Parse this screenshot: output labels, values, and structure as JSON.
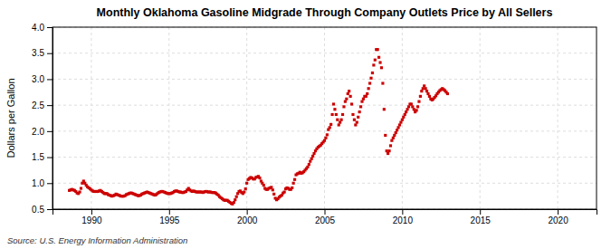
{
  "chart_data": {
    "type": "scatter",
    "title": "Monthly Oklahoma Gasoline Midgrade Through Company Outlets Price by All Sellers",
    "ylabel": "Dollars per Gallon",
    "annotations": [
      "Source: U.S. Energy Information Administration"
    ],
    "color": "#CC0000",
    "marker": "square",
    "grid": true,
    "xlim": [
      1987.5,
      2022.5
    ],
    "ylim": [
      0.5,
      4.0
    ],
    "xticks": [
      1990,
      1995,
      2000,
      2005,
      2010,
      2015,
      2020
    ],
    "yticks": [
      0.5,
      {
        "value": 1.0,
        "label": "1.0"
      },
      1.5,
      {
        "value": 2.0,
        "label": "2.0"
      },
      2.5,
      {
        "value": 3.0,
        "label": "3.0"
      },
      3.5,
      {
        "value": 4.0,
        "label": "4.0"
      }
    ],
    "x": [
      1988.583,
      1988.667,
      1988.75,
      1988.833,
      1988.917,
      1989.0,
      1989.083,
      1989.167,
      1989.25,
      1989.333,
      1989.417,
      1989.5,
      1989.583,
      1989.667,
      1989.75,
      1989.833,
      1989.917,
      1990.0,
      1990.083,
      1990.167,
      1990.25,
      1990.333,
      1990.417,
      1990.5,
      1990.583,
      1990.667,
      1990.75,
      1990.833,
      1990.917,
      1991.0,
      1991.083,
      1991.167,
      1991.25,
      1991.333,
      1991.417,
      1991.5,
      1991.583,
      1991.667,
      1991.75,
      1991.833,
      1991.917,
      1992.0,
      1992.083,
      1992.167,
      1992.25,
      1992.333,
      1992.417,
      1992.5,
      1992.583,
      1992.667,
      1992.75,
      1992.833,
      1992.917,
      1993.0,
      1993.083,
      1993.167,
      1993.25,
      1993.333,
      1993.417,
      1993.5,
      1993.583,
      1993.667,
      1993.75,
      1993.833,
      1993.917,
      1994.0,
      1994.083,
      1994.167,
      1994.25,
      1994.333,
      1994.417,
      1994.5,
      1994.583,
      1994.667,
      1994.75,
      1994.833,
      1994.917,
      1995.0,
      1995.083,
      1995.167,
      1995.25,
      1995.333,
      1995.417,
      1995.5,
      1995.583,
      1995.667,
      1995.75,
      1995.833,
      1995.917,
      1996.0,
      1996.083,
      1996.167,
      1996.25,
      1996.333,
      1996.417,
      1996.5,
      1996.583,
      1996.667,
      1996.75,
      1996.833,
      1996.917,
      1997.0,
      1997.083,
      1997.167,
      1997.25,
      1997.333,
      1997.417,
      1997.5,
      1997.583,
      1997.667,
      1997.75,
      1997.833,
      1997.917,
      1998.0,
      1998.083,
      1998.167,
      1998.25,
      1998.333,
      1998.417,
      1998.5,
      1998.583,
      1998.667,
      1998.75,
      1998.833,
      1998.917,
      1999.0,
      1999.083,
      1999.167,
      1999.25,
      1999.333,
      1999.417,
      1999.5,
      1999.583,
      1999.667,
      1999.75,
      1999.833,
      1999.917,
      2000.0,
      2000.083,
      2000.167,
      2000.25,
      2000.333,
      2000.417,
      2000.5,
      2000.583,
      2000.667,
      2000.75,
      2000.833,
      2000.917,
      2001.0,
      2001.083,
      2001.167,
      2001.25,
      2001.333,
      2001.417,
      2001.5,
      2001.583,
      2001.667,
      2001.75,
      2001.833,
      2001.917,
      2002.0,
      2002.083,
      2002.167,
      2002.25,
      2002.333,
      2002.417,
      2002.5,
      2002.583,
      2002.667,
      2002.75,
      2002.833,
      2002.917,
      2003.0,
      2003.083,
      2003.167,
      2003.25,
      2003.333,
      2003.417,
      2003.5,
      2003.583,
      2003.667,
      2003.75,
      2003.833,
      2003.917,
      2004.0,
      2004.083,
      2004.167,
      2004.25,
      2004.333,
      2004.417,
      2004.5,
      2004.583,
      2004.667,
      2004.75,
      2004.833,
      2004.917,
      2005.0,
      2005.083,
      2005.167,
      2005.25,
      2005.333,
      2005.417,
      2005.5,
      2005.583,
      2005.667,
      2005.75,
      2005.833,
      2005.917,
      2006.0,
      2006.083,
      2006.167,
      2006.25,
      2006.333,
      2006.417,
      2006.5,
      2006.583,
      2006.667,
      2006.75,
      2006.833,
      2006.917,
      2007.0,
      2007.083,
      2007.167,
      2007.25,
      2007.333,
      2007.417,
      2007.5,
      2007.583,
      2007.667,
      2007.75,
      2007.833,
      2007.917,
      2008.0,
      2008.083,
      2008.167,
      2008.25,
      2008.333,
      2008.417,
      2008.5,
      2008.583,
      2008.667,
      2008.75,
      2008.833,
      2008.917,
      2009.0,
      2009.083,
      2009.167,
      2009.25,
      2009.333,
      2009.417,
      2009.5,
      2009.583,
      2009.667,
      2009.75,
      2009.833,
      2009.917,
      2010.0,
      2010.083,
      2010.167,
      2010.25,
      2010.333,
      2010.417,
      2010.5,
      2010.583,
      2010.667,
      2010.75,
      2010.833,
      2010.917,
      2011.0,
      2011.083,
      2011.167,
      2011.25,
      2011.333,
      2011.417,
      2011.5,
      2011.583,
      2011.667,
      2011.75,
      2011.833,
      2011.917,
      2012.0,
      2012.083,
      2012.167,
      2012.25,
      2012.333,
      2012.417,
      2012.5,
      2012.583,
      2012.667,
      2012.75,
      2012.833,
      2012.917
    ],
    "values": [
      0.86,
      0.87,
      0.88,
      0.87,
      0.86,
      0.84,
      0.81,
      0.8,
      0.83,
      0.9,
      1.0,
      1.04,
      1.0,
      0.96,
      0.93,
      0.91,
      0.89,
      0.87,
      0.85,
      0.84,
      0.84,
      0.84,
      0.84,
      0.85,
      0.86,
      0.84,
      0.82,
      0.8,
      0.8,
      0.8,
      0.78,
      0.77,
      0.76,
      0.75,
      0.76,
      0.77,
      0.79,
      0.78,
      0.77,
      0.76,
      0.75,
      0.75,
      0.75,
      0.76,
      0.78,
      0.79,
      0.8,
      0.81,
      0.81,
      0.8,
      0.79,
      0.78,
      0.77,
      0.76,
      0.76,
      0.77,
      0.79,
      0.8,
      0.81,
      0.82,
      0.83,
      0.82,
      0.81,
      0.8,
      0.79,
      0.78,
      0.77,
      0.78,
      0.8,
      0.82,
      0.83,
      0.84,
      0.84,
      0.83,
      0.82,
      0.81,
      0.8,
      0.8,
      0.8,
      0.81,
      0.82,
      0.84,
      0.85,
      0.85,
      0.84,
      0.83,
      0.83,
      0.82,
      0.82,
      0.83,
      0.84,
      0.87,
      0.9,
      0.87,
      0.85,
      0.84,
      0.85,
      0.84,
      0.83,
      0.83,
      0.83,
      0.83,
      0.83,
      0.82,
      0.83,
      0.84,
      0.84,
      0.83,
      0.83,
      0.83,
      0.82,
      0.82,
      0.82,
      0.81,
      0.79,
      0.77,
      0.74,
      0.72,
      0.7,
      0.68,
      0.67,
      0.67,
      0.67,
      0.65,
      0.63,
      0.61,
      0.6,
      0.63,
      0.68,
      0.74,
      0.8,
      0.84,
      0.85,
      0.82,
      0.8,
      0.83,
      0.89,
      1.0,
      1.07,
      1.09,
      1.11,
      1.1,
      1.08,
      1.08,
      1.11,
      1.12,
      1.13,
      1.1,
      1.04,
      1.0,
      0.96,
      0.9,
      0.88,
      0.88,
      0.9,
      0.91,
      0.92,
      0.87,
      0.79,
      0.71,
      0.68,
      0.7,
      0.73,
      0.75,
      0.77,
      0.81,
      0.83,
      0.89,
      0.91,
      0.9,
      0.88,
      0.88,
      0.91,
      1.0,
      1.07,
      1.16,
      1.18,
      1.19,
      1.21,
      1.19,
      1.2,
      1.22,
      1.25,
      1.28,
      1.31,
      1.36,
      1.42,
      1.47,
      1.52,
      1.57,
      1.62,
      1.66,
      1.69,
      1.71,
      1.73,
      1.76,
      1.79,
      1.82,
      1.87,
      1.93,
      2.03,
      2.07,
      2.13,
      2.32,
      2.52,
      2.42,
      2.32,
      2.22,
      2.12,
      2.17,
      2.22,
      2.32,
      2.47,
      2.57,
      2.62,
      2.72,
      2.77,
      2.67,
      2.52,
      2.32,
      2.22,
      2.12,
      2.17,
      2.27,
      2.37,
      2.47,
      2.57,
      2.62,
      2.67,
      2.67,
      2.72,
      2.82,
      2.92,
      3.02,
      3.12,
      3.27,
      3.37,
      3.57,
      3.57,
      3.42,
      3.32,
      3.22,
      2.92,
      2.42,
      1.92,
      1.62,
      1.57,
      1.62,
      1.72,
      1.82,
      1.87,
      1.92,
      1.97,
      2.02,
      2.07,
      2.12,
      2.17,
      2.22,
      2.27,
      2.32,
      2.37,
      2.42,
      2.47,
      2.52,
      2.52,
      2.47,
      2.42,
      2.37,
      2.4,
      2.47,
      2.57,
      2.67,
      2.77,
      2.82,
      2.87,
      2.82,
      2.77,
      2.72,
      2.67,
      2.62,
      2.6,
      2.62,
      2.65,
      2.68,
      2.72,
      2.75,
      2.78,
      2.8,
      2.82,
      2.8,
      2.78,
      2.75,
      2.72
    ]
  }
}
